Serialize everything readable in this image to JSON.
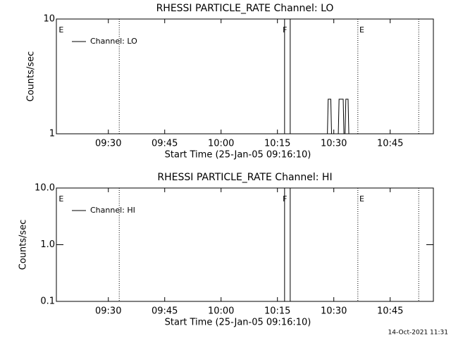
{
  "chart_data": [
    {
      "type": "line",
      "title": "RHESSI PARTICLE_RATE Channel: LO",
      "x_label": "Start Time (25-Jan-05 09:16:10)",
      "y_label": "Counts/sec",
      "log_y": true,
      "xlim": [
        556.17,
        656.5
      ],
      "ylim": [
        1,
        10
      ],
      "xticks": [
        {
          "value": 570,
          "label": "09:30"
        },
        {
          "value": 585,
          "label": "09:45"
        },
        {
          "value": 600,
          "label": "10:00"
        },
        {
          "value": 615,
          "label": "10:15"
        },
        {
          "value": 630,
          "label": "10:30"
        },
        {
          "value": 645,
          "label": "10:45"
        }
      ],
      "yticks": [
        1,
        10
      ],
      "legend": "top-left",
      "series": [
        {
          "name": "Channel: LO",
          "color": "#000000",
          "x": [
            616.9,
            616.9,
            618.4,
            618.4,
            628.3,
            628.5,
            629.2,
            629.4,
            631.2,
            631.4,
            632.5,
            632.7,
            633.0,
            633.2,
            633.8,
            634.0
          ],
          "values": [
            1,
            10,
            10,
            1,
            1,
            2,
            2,
            1,
            1,
            2,
            2,
            1,
            1,
            2,
            2,
            1
          ]
        }
      ],
      "markers": [
        572.9,
        636.4,
        652.6
      ],
      "flags": [
        {
          "label": "E",
          "x": 556.8
        },
        {
          "label": "F",
          "x": 616.4
        },
        {
          "label": "E",
          "x": 636.8
        }
      ]
    },
    {
      "type": "line",
      "title": "RHESSI PARTICLE_RATE Channel: HI",
      "x_label": "Start Time (25-Jan-05 09:16:10)",
      "y_label": "Counts/sec",
      "log_y": true,
      "xlim": [
        556.17,
        656.5
      ],
      "ylim": [
        0.1,
        10
      ],
      "xticks": [
        {
          "value": 570,
          "label": "09:30"
        },
        {
          "value": 585,
          "label": "09:45"
        },
        {
          "value": 600,
          "label": "10:00"
        },
        {
          "value": 615,
          "label": "10:15"
        },
        {
          "value": 630,
          "label": "10:30"
        },
        {
          "value": 645,
          "label": "10:45"
        }
      ],
      "yticks": [
        {
          "value": 0.1,
          "label": "0.1"
        },
        {
          "value": 1,
          "label": "1.0"
        },
        {
          "value": 10,
          "label": "10.0"
        }
      ],
      "legend": "top-left",
      "series": [
        {
          "name": "Channel: HI",
          "color": "#000000",
          "x": [
            616.9,
            616.9,
            618.4,
            618.4
          ],
          "values": [
            0.1,
            10,
            10,
            0.1
          ]
        }
      ],
      "markers": [
        572.9,
        636.4,
        652.6
      ],
      "flags": [
        {
          "label": "E",
          "x": 556.8
        },
        {
          "label": "F",
          "x": 616.4
        },
        {
          "label": "E",
          "x": 636.8
        }
      ]
    }
  ],
  "footer": "14-Oct-2021 11:31"
}
